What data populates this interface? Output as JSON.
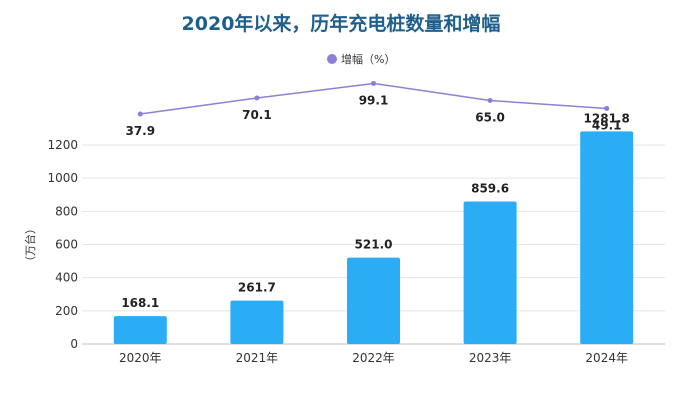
{
  "chart_data": {
    "type": "bar",
    "title": "2020年以来，历年充电桩数量和增幅",
    "categories": [
      "2020年",
      "2021年",
      "2022年",
      "2023年",
      "2024年"
    ],
    "ylabel": "（万台）",
    "ylim": [
      0,
      1200
    ],
    "yticks": [
      "0",
      "200",
      "400",
      "600",
      "800",
      "1000",
      "1200"
    ],
    "bar_color": "#2aadf5",
    "series": [
      {
        "values": [
          168.1,
          261.7,
          521.0,
          859.6,
          1281.8
        ],
        "labels": [
          "168.1",
          "261.7",
          "521.0",
          "859.6",
          "1281.8"
        ]
      }
    ],
    "line_series": {
      "name": "增幅（%）",
      "color": "#8e7ed8",
      "values": [
        37.9,
        70.1,
        99.1,
        65.0,
        49.1
      ],
      "labels": [
        "37.9",
        "70.1",
        "99.1",
        "65.0",
        "49.1"
      ]
    },
    "legend_position": "top"
  }
}
